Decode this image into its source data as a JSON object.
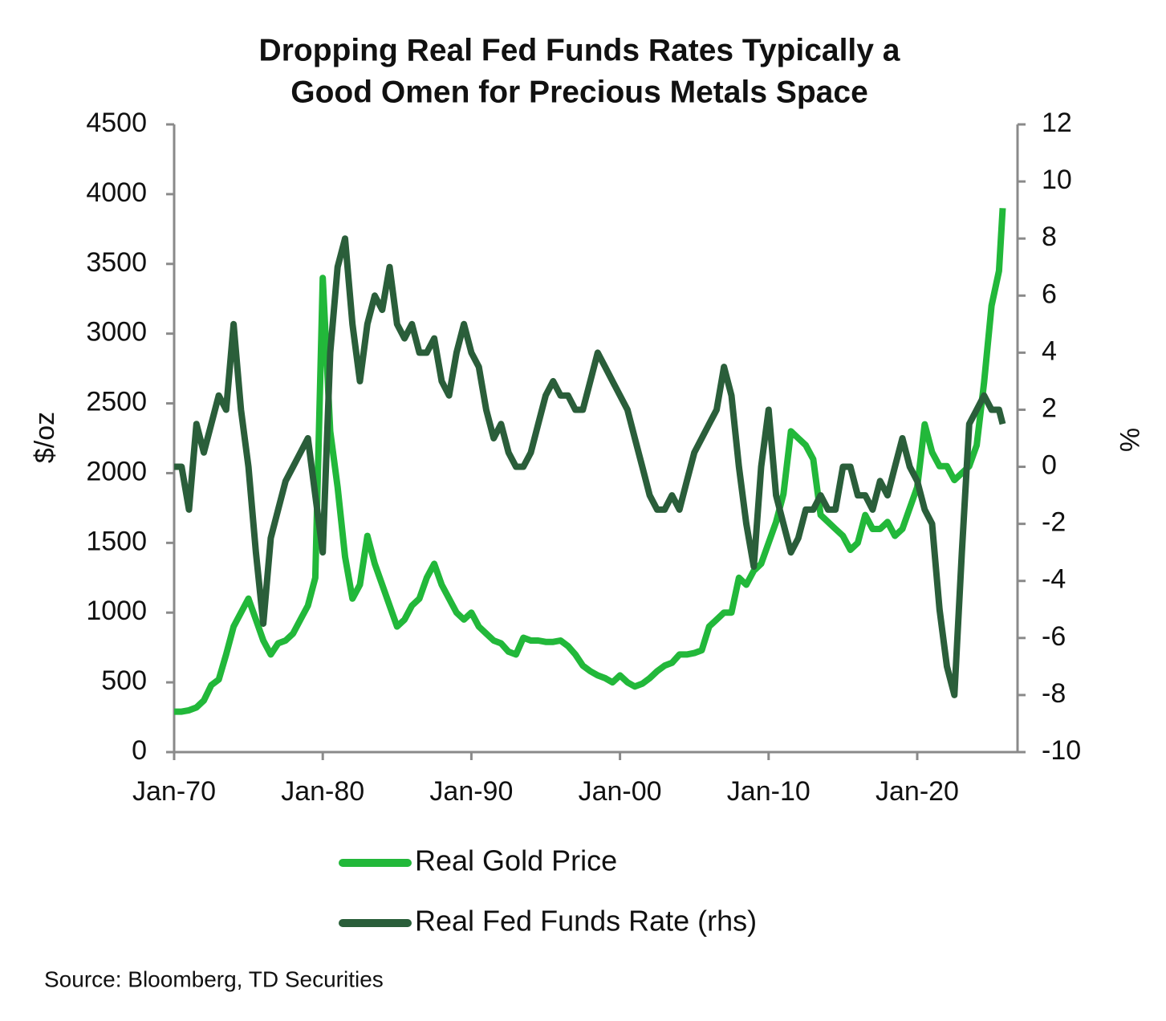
{
  "chart_data": {
    "type": "line",
    "title": [
      "Dropping Real Fed Funds Rates Typically a",
      "Good Omen for Precious Metals Space"
    ],
    "y_label": "$/oz",
    "y2_label": "%",
    "source": "Source: Bloomberg, TD Securities",
    "x": [
      "Jan-70",
      "Jul-70",
      "Jan-71",
      "Jul-71",
      "Jan-72",
      "Jul-72",
      "Jan-73",
      "Jul-73",
      "Jan-74",
      "Jul-74",
      "Jan-75",
      "Jul-75",
      "Jan-76",
      "Jul-76",
      "Jan-77",
      "Jul-77",
      "Jan-78",
      "Jul-78",
      "Jan-79",
      "Jul-79",
      "Jan-80",
      "Jul-80",
      "Jan-81",
      "Jul-81",
      "Jan-82",
      "Jul-82",
      "Jan-83",
      "Jul-83",
      "Jan-84",
      "Jul-84",
      "Jan-85",
      "Jul-85",
      "Jan-86",
      "Jul-86",
      "Jan-87",
      "Jul-87",
      "Jan-88",
      "Jul-88",
      "Jan-89",
      "Jul-89",
      "Jan-90",
      "Jul-90",
      "Jan-91",
      "Jul-91",
      "Jan-92",
      "Jul-92",
      "Jan-93",
      "Jul-93",
      "Jan-94",
      "Jul-94",
      "Jan-95",
      "Jul-95",
      "Jan-96",
      "Jul-96",
      "Jan-97",
      "Jul-97",
      "Jan-98",
      "Jul-98",
      "Jan-99",
      "Jul-99",
      "Jan-00",
      "Jul-00",
      "Jan-01",
      "Jul-01",
      "Jan-02",
      "Jul-02",
      "Jan-03",
      "Jul-03",
      "Jan-04",
      "Jul-04",
      "Jan-05",
      "Jul-05",
      "Jan-06",
      "Jul-06",
      "Jan-07",
      "Jul-07",
      "Jan-08",
      "Jul-08",
      "Jan-09",
      "Jul-09",
      "Jan-10",
      "Jul-10",
      "Jan-11",
      "Jul-11",
      "Jan-12",
      "Jul-12",
      "Jan-13",
      "Jul-13",
      "Jan-14",
      "Jul-14",
      "Jan-15",
      "Jul-15",
      "Jan-16",
      "Jul-16",
      "Jan-17",
      "Jul-17",
      "Jan-18",
      "Jul-18",
      "Jan-19",
      "Jul-19",
      "Jan-20",
      "Jul-20",
      "Jan-21",
      "Jul-21",
      "Jan-22",
      "Jul-22",
      "Jan-23",
      "Jul-23",
      "Jan-24",
      "Jul-24",
      "Jan-25",
      "Jul-25",
      "Oct-25"
    ],
    "series": [
      {
        "name": "Real Gold Price",
        "color": "#22b83a",
        "values": [
          290,
          290,
          300,
          320,
          370,
          480,
          520,
          700,
          900,
          1000,
          1100,
          950,
          800,
          700,
          780,
          800,
          850,
          950,
          1050,
          1250,
          3400,
          2300,
          1900,
          1400,
          1100,
          1200,
          1550,
          1350,
          1200,
          1050,
          900,
          950,
          1050,
          1100,
          1250,
          1350,
          1200,
          1100,
          1000,
          950,
          1000,
          900,
          850,
          800,
          780,
          720,
          700,
          820,
          800,
          800,
          790,
          790,
          800,
          760,
          700,
          620,
          580,
          550,
          530,
          500,
          550,
          500,
          470,
          490,
          530,
          580,
          620,
          640,
          700,
          700,
          710,
          730,
          900,
          950,
          1000,
          1000,
          1250,
          1200,
          1300,
          1350,
          1500,
          1650,
          1850,
          2300,
          2250,
          2200,
          2100,
          1700,
          1650,
          1600,
          1550,
          1450,
          1500,
          1700,
          1600,
          1600,
          1650,
          1550,
          1600,
          1750,
          1900,
          2350,
          2150,
          2050,
          2050,
          1950,
          2000,
          2050,
          2200,
          2650,
          3200,
          3450,
          3900
        ]
      },
      {
        "name": "Real Fed Funds Rate (rhs)",
        "color": "#2a5e3a",
        "axis": "y2",
        "values": [
          0,
          0,
          -1.5,
          1.5,
          0.5,
          1.5,
          2.5,
          2,
          5,
          2,
          0,
          -3,
          -5.5,
          -2.5,
          -1.5,
          -0.5,
          0,
          0.5,
          1,
          -1,
          -3,
          4,
          7,
          8,
          5,
          3,
          5,
          6,
          5.5,
          7,
          5,
          4.5,
          5,
          4,
          4,
          4.5,
          3,
          2.5,
          4,
          5,
          4,
          3.5,
          2,
          1,
          1.5,
          0.5,
          0,
          0,
          0.5,
          1.5,
          2.5,
          3,
          2.5,
          2.5,
          2,
          2,
          3,
          4,
          3.5,
          3,
          2.5,
          2,
          1,
          0,
          -1,
          -1.5,
          -1.5,
          -1,
          -1.5,
          -0.5,
          0.5,
          1,
          1.5,
          2,
          3.5,
          2.5,
          0,
          -2,
          -3.5,
          0,
          2,
          -1,
          -2,
          -3,
          -2.5,
          -1.5,
          -1.5,
          -1,
          -1.5,
          -1.5,
          0,
          0,
          -1,
          -1,
          -1.5,
          -0.5,
          -1,
          0,
          1,
          0,
          -0.5,
          -1.5,
          -2,
          -5,
          -7,
          -8,
          -3,
          1.5,
          2,
          2.5,
          2,
          2,
          1.5
        ]
      }
    ],
    "xlim": [
      "Jan-70",
      "Oct-26"
    ],
    "xticks": [
      "Jan-70",
      "Jan-80",
      "Jan-90",
      "Jan-00",
      "Jan-10",
      "Jan-20"
    ],
    "ylim": [
      0,
      4500
    ],
    "yticks": [
      0,
      500,
      1000,
      1500,
      2000,
      2500,
      3000,
      3500,
      4000,
      4500
    ],
    "y2lim": [
      -10,
      12
    ],
    "y2ticks": [
      -10,
      -8,
      -6,
      -4,
      -2,
      0,
      2,
      4,
      6,
      8,
      10,
      12
    ]
  }
}
